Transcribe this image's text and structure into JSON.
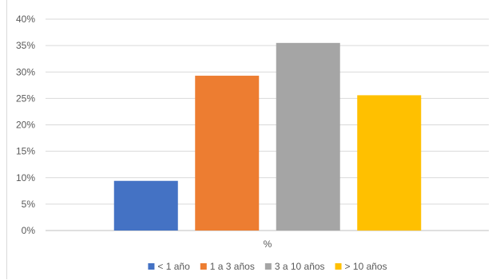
{
  "chart_data": {
    "type": "bar",
    "categories": [
      "%"
    ],
    "series": [
      {
        "name": "< 1 año",
        "values": [
          9.4
        ],
        "color": "#4472C4"
      },
      {
        "name": "1 a 3 años",
        "values": [
          29.3
        ],
        "color": "#ED7D31"
      },
      {
        "name": "3 a 10 años",
        "values": [
          35.5
        ],
        "color": "#A5A5A5"
      },
      {
        "name": "> 10 años",
        "values": [
          25.6
        ],
        "color": "#FFC000"
      }
    ],
    "y_ticks": [
      "0%",
      "5%",
      "10%",
      "15%",
      "20%",
      "25%",
      "30%",
      "35%",
      "40%"
    ],
    "ylim": [
      0,
      40
    ],
    "grid": true,
    "legend_position": "bottom",
    "title": "",
    "xlabel": "",
    "ylabel": ""
  }
}
